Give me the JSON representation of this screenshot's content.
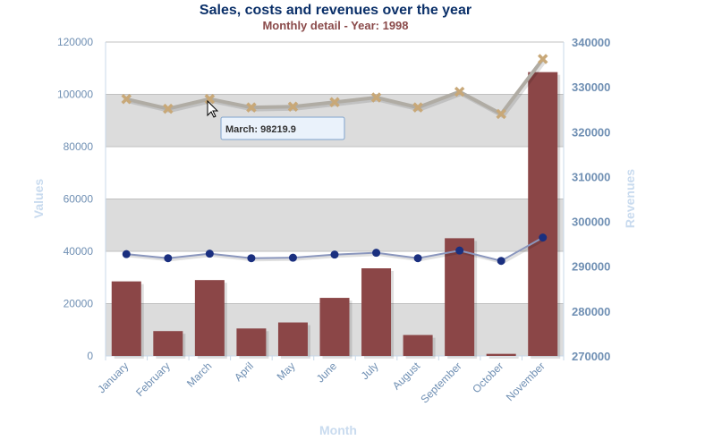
{
  "chart_data": {
    "type": "bar",
    "title": "Sales, costs and revenues over the year",
    "subtitle": "Monthly detail - Year: 1998",
    "xlabel": "Month",
    "ylabel": "Values",
    "y2label": "Revenues",
    "categories": [
      "January",
      "February",
      "March",
      "April",
      "May",
      "June",
      "July",
      "August",
      "September",
      "October",
      "November"
    ],
    "ylim": [
      0,
      120000
    ],
    "yticks": [
      0,
      20000,
      40000,
      60000,
      80000,
      100000,
      120000
    ],
    "y2lim": [
      270000,
      340000
    ],
    "y2ticks": [
      270000,
      280000,
      290000,
      300000,
      310000,
      320000,
      330000,
      340000
    ],
    "grid_bands": [
      [
        0,
        20000
      ],
      [
        40000,
        60000
      ],
      [
        80000,
        100000
      ]
    ],
    "series": [
      {
        "type": "bar",
        "axis": "left",
        "color": "#8b4647",
        "values": [
          28500,
          9500,
          29000,
          10500,
          12800,
          22200,
          33500,
          8000,
          45000,
          800,
          108500
        ]
      },
      {
        "type": "line",
        "axis": "left",
        "color": "#c8a878",
        "marker": "x",
        "values": [
          98200,
          94500,
          98219.9,
          95000,
          95300,
          97000,
          98800,
          95000,
          101000,
          92500,
          113500
        ]
      },
      {
        "type": "line",
        "axis": "right",
        "color": "#1a2f7f",
        "marker": "circle",
        "values": [
          292700,
          291800,
          292800,
          291800,
          291900,
          292600,
          293000,
          291800,
          293500,
          291200,
          296400
        ]
      }
    ],
    "tooltip": {
      "text": "March: 98219.9",
      "category": "March"
    }
  }
}
